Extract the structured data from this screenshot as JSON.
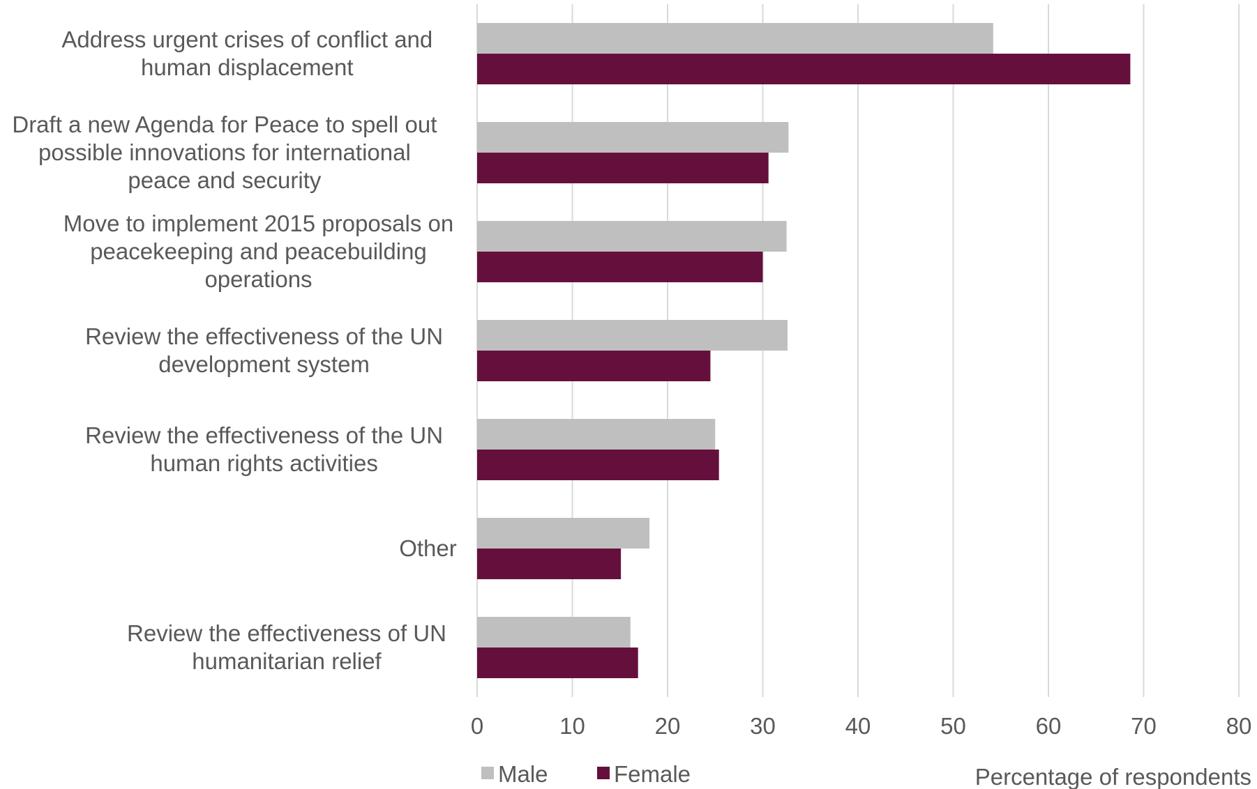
{
  "chart_data": {
    "type": "bar",
    "orientation": "horizontal",
    "categories": [
      [
        "Address urgent crises of conflict and",
        "human displacement"
      ],
      [
        "Draft a new Agenda for Peace to spell out",
        "possible innovations for international",
        "peace and security"
      ],
      [
        "Move to implement 2015 proposals on",
        "peacekeeping and peacebuilding",
        "operations"
      ],
      [
        "Review the effectiveness of the UN",
        "development system"
      ],
      [
        "Review the effectiveness of the UN",
        "human rights activities"
      ],
      [
        "Other"
      ],
      [
        "Review the effectiveness of UN",
        "humanitarian relief"
      ]
    ],
    "series": [
      {
        "name": "Male",
        "color": "#bfbfbf",
        "values": [
          54.2,
          32.7,
          32.5,
          32.6,
          25.0,
          18.1,
          16.1
        ]
      },
      {
        "name": "Female",
        "color": "#65103c",
        "values": [
          68.6,
          30.6,
          30.0,
          24.5,
          25.4,
          15.1,
          16.9
        ]
      }
    ],
    "xlim": [
      0,
      80
    ],
    "xticks": [
      0,
      10,
      20,
      30,
      40,
      50,
      60,
      70,
      80
    ],
    "xlabel": "Percentage of respondents",
    "ylabel": "",
    "grid": true,
    "legend": "bottom-left"
  }
}
